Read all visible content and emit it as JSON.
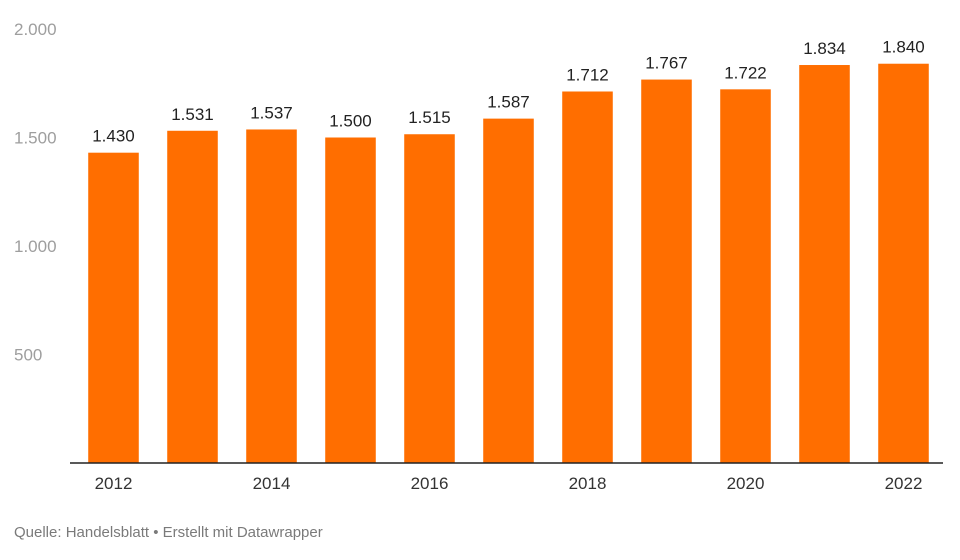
{
  "chart_data": {
    "type": "bar",
    "categories": [
      "2012",
      "2013",
      "2014",
      "2015",
      "2016",
      "2017",
      "2018",
      "2019",
      "2020",
      "2021",
      "2022"
    ],
    "values": [
      1430,
      1531,
      1537,
      1500,
      1515,
      1587,
      1712,
      1767,
      1722,
      1834,
      1840
    ],
    "value_labels": [
      "1.430",
      "1.531",
      "1.537",
      "1.500",
      "1.515",
      "1.587",
      "1.712",
      "1.767",
      "1.722",
      "1.834",
      "1.840"
    ],
    "x_tick_labels": [
      "2012",
      "2014",
      "2016",
      "2018",
      "2020",
      "2022"
    ],
    "y_ticks": [
      {
        "value": 500,
        "label": "500"
      },
      {
        "value": 1000,
        "label": "1.000"
      },
      {
        "value": 1500,
        "label": "1.500"
      },
      {
        "value": 2000,
        "label": "2.000"
      }
    ],
    "ylim": [
      0,
      2000
    ],
    "grid": false,
    "bar_color": "#ff6e00"
  },
  "footer": {
    "source_text": "Quelle: Handelsblatt • Erstellt mit Datawrapper"
  }
}
